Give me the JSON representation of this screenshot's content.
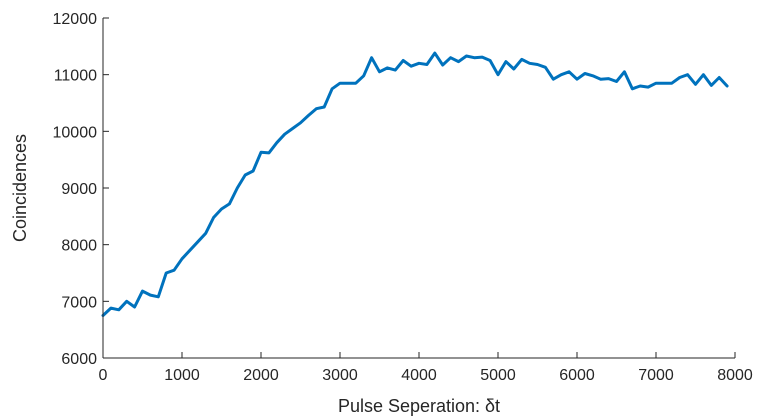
{
  "chart_data": {
    "type": "line",
    "xlabel": "Pulse Seperation: δt",
    "ylabel": "Coincidences",
    "xlim": [
      0,
      8000
    ],
    "ylim": [
      6000,
      12000
    ],
    "xticks": [
      0,
      1000,
      2000,
      3000,
      4000,
      5000,
      6000,
      7000,
      8000
    ],
    "yticks": [
      6000,
      7000,
      8000,
      9000,
      10000,
      11000,
      12000
    ],
    "xtick_labels": [
      "0",
      "1000",
      "2000",
      "3000",
      "4000",
      "5000",
      "6000",
      "7000",
      "8000"
    ],
    "ytick_labels": [
      "6000",
      "7000",
      "8000",
      "9000",
      "10000",
      "11000",
      "12000"
    ],
    "grid": false,
    "series": [
      {
        "color": "#0072BD",
        "x": [
          0,
          100,
          200,
          300,
          400,
          500,
          600,
          700,
          800,
          900,
          1000,
          1100,
          1200,
          1300,
          1400,
          1500,
          1600,
          1700,
          1800,
          1900,
          2000,
          2100,
          2200,
          2300,
          2400,
          2500,
          2600,
          2700,
          2800,
          2900,
          3000,
          3100,
          3200,
          3300,
          3400,
          3500,
          3600,
          3700,
          3800,
          3900,
          4000,
          4100,
          4200,
          4300,
          4400,
          4500,
          4600,
          4700,
          4800,
          4900,
          5000,
          5100,
          5200,
          5300,
          5400,
          5500,
          5600,
          5700,
          5800,
          5900,
          6000,
          6100,
          6200,
          6300,
          6400,
          6500,
          6600,
          6700,
          6800,
          6900,
          7000,
          7100,
          7200,
          7300,
          7400,
          7500,
          7600,
          7700,
          7800,
          7900
        ],
        "y": [
          6750,
          6880,
          6850,
          7000,
          6900,
          7180,
          7110,
          7080,
          7500,
          7550,
          7750,
          7900,
          8050,
          8200,
          8480,
          8630,
          8720,
          9000,
          9230,
          9300,
          9630,
          9620,
          9800,
          9950,
          10050,
          10150,
          10280,
          10400,
          10430,
          10750,
          10850,
          10850,
          10850,
          10980,
          11300,
          11050,
          11120,
          11080,
          11250,
          11150,
          11200,
          11180,
          11380,
          11170,
          11300,
          11230,
          11330,
          11300,
          11310,
          11250,
          11000,
          11230,
          11100,
          11270,
          11200,
          11180,
          11130,
          10920,
          11000,
          11050,
          10920,
          11020,
          10980,
          10920,
          10930,
          10880,
          11050,
          10750,
          10800,
          10780,
          10850,
          10850,
          10850,
          10950,
          11000,
          10830,
          11000,
          10810,
          10950,
          10800
        ]
      }
    ]
  }
}
